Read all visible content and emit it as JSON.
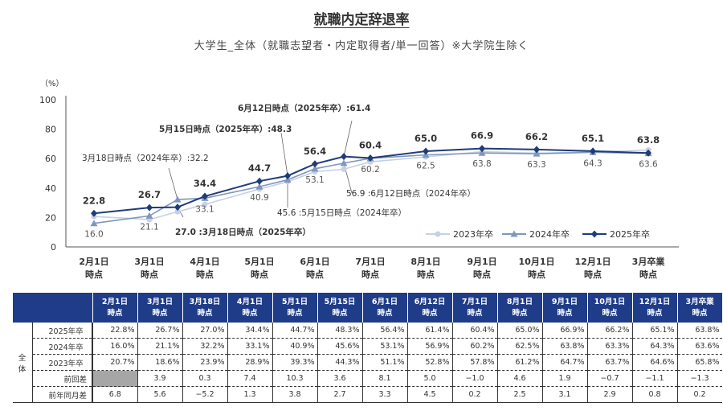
{
  "title": "就職内定辞退率",
  "subtitle": "大学生_全体（就職志望者・内定取得者/単一回答）※大学院生除く",
  "chart_data": {
    "type": "line",
    "ylabel": "（%）",
    "ylim": [
      0,
      100
    ],
    "yticks": [
      0,
      20,
      40,
      60,
      80,
      100
    ],
    "x": [
      "2月1日時点",
      "3月1日時点",
      "3月18日時点",
      "4月1日時点",
      "5月1日時点",
      "5月15日時点",
      "6月1日時点",
      "6月12日時点",
      "7月1日時点",
      "8月1日時点",
      "9月1日時点",
      "10月1日時点",
      "12月1日時点",
      "3月卒業時点"
    ],
    "xtick_labels": [
      [
        "2月1日",
        "時点"
      ],
      [
        "3月1日",
        "時点"
      ],
      [
        "4月1日",
        "時点"
      ],
      [
        "5月1日",
        "時点"
      ],
      [
        "6月1日",
        "時点"
      ],
      [
        "7月1日",
        "時点"
      ],
      [
        "8月1日",
        "時点"
      ],
      [
        "9月1日",
        "時点"
      ],
      [
        "10月1日",
        "時点"
      ],
      [
        "12月1日",
        "時点"
      ],
      [
        "3月卒業",
        "時点"
      ]
    ],
    "legend_position": "bottom-right",
    "grid": false,
    "series": [
      {
        "name": "2023年卒",
        "color": "#c5d0e3",
        "marker": "circle",
        "values": [
          20.7,
          18.6,
          23.9,
          28.9,
          39.3,
          44.3,
          51.1,
          52.8,
          57.8,
          61.2,
          64.7,
          63.7,
          64.6,
          65.8
        ]
      },
      {
        "name": "2024年卒",
        "color": "#7f96bd",
        "marker": "triangle",
        "values": [
          16.0,
          21.1,
          32.2,
          33.1,
          40.9,
          45.6,
          53.1,
          56.9,
          60.2,
          62.5,
          63.8,
          63.3,
          64.3,
          63.6
        ]
      },
      {
        "name": "2025年卒",
        "color": "#1f3c78",
        "marker": "diamond",
        "values": [
          22.8,
          26.7,
          27.0,
          34.4,
          44.7,
          48.3,
          56.4,
          61.4,
          60.4,
          65.0,
          66.9,
          66.2,
          65.1,
          63.8
        ]
      }
    ],
    "data_labels_2025": [
      "22.8",
      "26.7",
      "34.4",
      "44.7",
      "56.4",
      "60.4",
      "65.0",
      "66.9",
      "66.2",
      "65.1",
      "63.8"
    ],
    "data_labels_2024": [
      "16.0",
      "21.1",
      "33.1",
      "40.9",
      "53.1",
      "60.2",
      "62.5",
      "63.8",
      "63.3",
      "64.3",
      "63.6"
    ],
    "annotations": [
      {
        "text": "3月18日時点（2024年卒）:32.2"
      },
      {
        "text": "27.0 :3月18日時点（2025年卒）"
      },
      {
        "text": "5月15日時点（2025年卒）:48.3"
      },
      {
        "text": "45.6 :5月15日時点（2024年卒）"
      },
      {
        "text": "6月12日時点（2025年卒）:61.4"
      },
      {
        "text": "56.9 :6月12日時点（2024年卒）"
      }
    ]
  },
  "table": {
    "headers": [
      [
        "2月1日",
        "時点"
      ],
      [
        "3月1日",
        "時点"
      ],
      [
        "3月18日",
        "時点"
      ],
      [
        "4月1日",
        "時点"
      ],
      [
        "5月1日",
        "時点"
      ],
      [
        "5月15日",
        "時点"
      ],
      [
        "6月1日",
        "時点"
      ],
      [
        "6月12日",
        "時点"
      ],
      [
        "7月1日",
        "時点"
      ],
      [
        "8月1日",
        "時点"
      ],
      [
        "9月1日",
        "時点"
      ],
      [
        "10月1日",
        "時点"
      ],
      [
        "12月1日",
        "時点"
      ],
      [
        "3月卒業",
        "時点"
      ]
    ],
    "group_label": "全体",
    "rows": [
      {
        "label": "2025年卒",
        "values": [
          "22.8%",
          "26.7%",
          "27.0%",
          "34.4%",
          "44.7%",
          "48.3%",
          "56.4%",
          "61.4%",
          "60.4%",
          "65.0%",
          "66.9%",
          "66.2%",
          "65.1%",
          "63.8%"
        ]
      },
      {
        "label": "2024年卒",
        "values": [
          "16.0%",
          "21.1%",
          "32.2%",
          "33.1%",
          "40.9%",
          "45.6%",
          "53.1%",
          "56.9%",
          "60.2%",
          "62.5%",
          "63.8%",
          "63.3%",
          "64.3%",
          "63.6%"
        ]
      },
      {
        "label": "2023年卒",
        "values": [
          "20.7%",
          "18.6%",
          "23.9%",
          "28.9%",
          "39.3%",
          "44.3%",
          "51.1%",
          "52.8%",
          "57.8%",
          "61.2%",
          "64.7%",
          "63.7%",
          "64.6%",
          "65.8%"
        ]
      },
      {
        "label": "前回差",
        "values": [
          "",
          "3.9",
          "0.3",
          "7.4",
          "10.3",
          "3.6",
          "8.1",
          "5.0",
          "−1.0",
          "4.6",
          "1.9",
          "−0.7",
          "−1.1",
          "−1.3"
        ]
      },
      {
        "label": "前年同月差",
        "values": [
          "6.8",
          "5.6",
          "−5.2",
          "1.3",
          "3.8",
          "2.7",
          "3.3",
          "4.5",
          "0.2",
          "2.5",
          "3.1",
          "2.9",
          "0.8",
          "0.2"
        ]
      }
    ]
  }
}
